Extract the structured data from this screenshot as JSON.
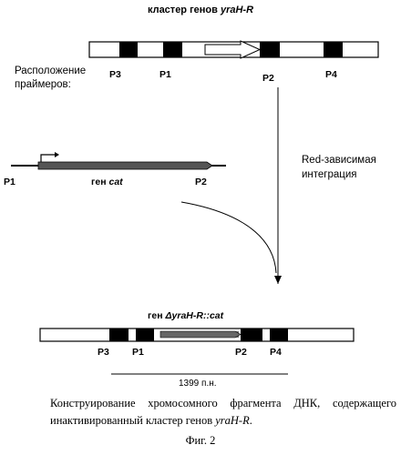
{
  "top_cluster": {
    "title_prefix": "кластер генов ",
    "title_gene": "yraH-R",
    "primer_labels": [
      "P3",
      "P1",
      "P2",
      "P4"
    ]
  },
  "primer_location_label": {
    "line1": "Расположение",
    "line2": "праймеров:"
  },
  "integration_label": {
    "line1": "Red-зависимая",
    "line2": "интеграция"
  },
  "cat_fragment": {
    "left_label": "P1",
    "right_label": "P2",
    "gene_label_prefix": "ген ",
    "gene_label_name": "cat"
  },
  "result_cluster": {
    "title_prefix": "ген ",
    "title_gene": "ΔyraH-R::cat",
    "primer_labels": [
      "P3",
      "P1",
      "P2",
      "P4"
    ],
    "length_label": "1399 п.н."
  },
  "caption": {
    "text": "Конструирование хромосомного фрагмента ДНК, содержащего инактивированный кластер генов ",
    "gene": "yraH-R",
    "end": "."
  },
  "figure_number": "Фиг. 2"
}
